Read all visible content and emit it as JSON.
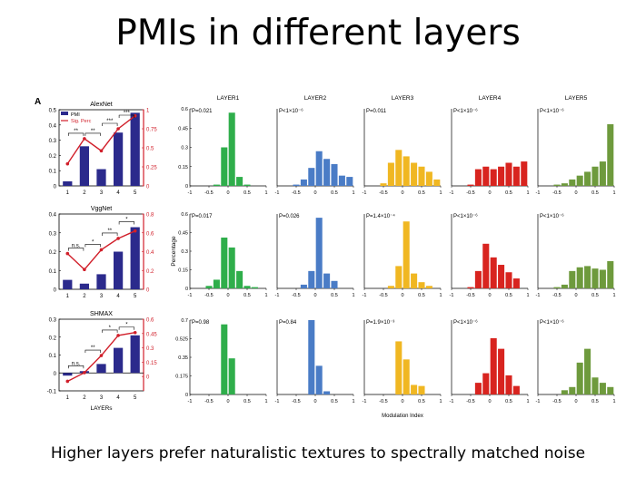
{
  "slide": {
    "title": "PMIs in different layers",
    "caption": "Higher layers prefer naturalistic textures to spectrally matched noise"
  },
  "colors": {
    "bar_blue": "#2b2a8c",
    "line_red": "#d11f2a",
    "layer_colors": [
      "#2fae4b",
      "#4a7cc6",
      "#f0b722",
      "#d8241f",
      "#6e9a3d"
    ]
  },
  "chart_data": [
    {
      "type": "bar+line",
      "panel_label": "A",
      "title": "AlexNet",
      "categories": [
        "1",
        "2",
        "3",
        "4",
        "5"
      ],
      "xticks": [
        "1",
        "2",
        "3",
        "4",
        "5"
      ],
      "ylim_left": [
        0,
        0.5
      ],
      "yticks_left": [
        "0",
        "0.1",
        "0.2",
        "0.3",
        "0.4",
        "0.5"
      ],
      "ylim_right": [
        0,
        1
      ],
      "yticks_right": [
        "0",
        "0.25",
        "0.5",
        "0.75",
        "1"
      ],
      "legend": [
        "PMI",
        "Sig. Perc"
      ],
      "series": [
        {
          "name": "PMI",
          "kind": "bar",
          "values": [
            0.03,
            0.26,
            0.11,
            0.35,
            0.48
          ]
        },
        {
          "name": "Sig. Perc",
          "kind": "line",
          "values": [
            0.29,
            0.62,
            0.46,
            0.75,
            0.92
          ]
        }
      ],
      "significance": [
        {
          "from": "1",
          "to": "2",
          "label": "**"
        },
        {
          "from": "2",
          "to": "3",
          "label": "**"
        },
        {
          "from": "3",
          "to": "4",
          "label": "***"
        },
        {
          "from": "4",
          "to": "5",
          "label": "***"
        }
      ]
    },
    {
      "type": "bar+line",
      "title": "VggNet",
      "categories": [
        "1",
        "2",
        "3",
        "4",
        "5"
      ],
      "xticks": [
        "1",
        "2",
        "3",
        "4",
        "5"
      ],
      "ylim_left": [
        0,
        0.4
      ],
      "yticks_left": [
        "0",
        "0.1",
        "0.2",
        "0.3",
        "0.4"
      ],
      "ylim_right": [
        0,
        0.8
      ],
      "yticks_right": [
        "0",
        "0.2",
        "0.4",
        "0.6",
        "0.8"
      ],
      "series": [
        {
          "name": "PMI",
          "kind": "bar",
          "values": [
            0.05,
            0.03,
            0.08,
            0.2,
            0.33
          ]
        },
        {
          "name": "Sig. Perc",
          "kind": "line",
          "values": [
            0.38,
            0.21,
            0.42,
            0.54,
            0.62
          ]
        }
      ],
      "significance": [
        {
          "from": "1",
          "to": "2",
          "label": "n.s."
        },
        {
          "from": "2",
          "to": "3",
          "label": "*"
        },
        {
          "from": "3",
          "to": "4",
          "label": "**"
        },
        {
          "from": "4",
          "to": "5",
          "label": "*"
        }
      ]
    },
    {
      "type": "bar+line",
      "title": "SHMAX",
      "xlabel": "LAYERs",
      "categories": [
        "1",
        "2",
        "3",
        "4",
        "5"
      ],
      "xticks": [
        "1",
        "2",
        "3",
        "4",
        "5"
      ],
      "ylim_left": [
        -0.1,
        0.3
      ],
      "yticks_left": [
        "-0.1",
        "0",
        "0.1",
        "0.2",
        "0.3"
      ],
      "ylim_right": [
        -0.15,
        0.6
      ],
      "yticks_right": [
        "0",
        "0.15",
        "0.3",
        "0.45",
        "0.6"
      ],
      "series": [
        {
          "name": "PMI",
          "kind": "bar",
          "values": [
            -0.015,
            0.01,
            0.05,
            0.14,
            0.21
          ]
        },
        {
          "name": "Sig. Perc",
          "kind": "line",
          "values": [
            -0.05,
            0.04,
            0.22,
            0.43,
            0.46
          ]
        }
      ],
      "significance": [
        {
          "from": "1",
          "to": "2",
          "label": "n.s."
        },
        {
          "from": "2",
          "to": "3",
          "label": "**"
        },
        {
          "from": "3",
          "to": "4",
          "label": "*"
        },
        {
          "from": "4",
          "to": "5",
          "label": "*"
        }
      ]
    },
    {
      "type": "histogram-grid",
      "columns": [
        "LAYER1",
        "LAYER2",
        "LAYER3",
        "LAYER4",
        "LAYER5"
      ],
      "ylabel": "Percentage",
      "xlabel": "Modulation Index",
      "xlim": [
        -1,
        1
      ],
      "xticks": [
        "-1",
        "-0.5",
        "0",
        "0.5",
        "1"
      ],
      "bin_centers": [
        -0.9,
        -0.7,
        -0.5,
        -0.3,
        -0.1,
        0.1,
        0.3,
        0.5,
        0.7,
        0.9
      ],
      "rows": [
        {
          "ylim": [
            0,
            0.6
          ],
          "yticks": [
            "0",
            "0.15",
            "0.3",
            "0.45",
            "0.6"
          ],
          "cells": [
            {
              "p": "P=0.021",
              "values": [
                0,
                0,
                0,
                0.01,
                0.3,
                0.57,
                0.07,
                0.01,
                0,
                0
              ]
            },
            {
              "p": "P<1×10⁻⁶",
              "values": [
                0,
                0,
                0.01,
                0.05,
                0.14,
                0.27,
                0.21,
                0.17,
                0.08,
                0.07
              ]
            },
            {
              "p": "P=0.011",
              "values": [
                0,
                0,
                0.02,
                0.18,
                0.28,
                0.23,
                0.18,
                0.15,
                0.11,
                0.05
              ]
            },
            {
              "p": "P<1×10⁻⁶",
              "values": [
                0,
                0,
                0.01,
                0.13,
                0.15,
                0.13,
                0.15,
                0.18,
                0.15,
                0.19
              ]
            },
            {
              "p": "P<1×10⁻⁶",
              "values": [
                0,
                0,
                0.01,
                0.02,
                0.05,
                0.08,
                0.11,
                0.15,
                0.19,
                0.48
              ]
            }
          ]
        },
        {
          "ylim": [
            0,
            0.6
          ],
          "yticks": [
            "0",
            "0.15",
            "0.3",
            "0.45",
            "0.6"
          ],
          "cells": [
            {
              "p": "P=0.017",
              "values": [
                0,
                0,
                0.02,
                0.07,
                0.41,
                0.33,
                0.14,
                0.02,
                0.01,
                0
              ]
            },
            {
              "p": "P=0.026",
              "values": [
                0,
                0,
                0,
                0.03,
                0.14,
                0.57,
                0.12,
                0.06,
                0,
                0
              ]
            },
            {
              "p": "P=1.4×10⁻⁴",
              "values": [
                0,
                0,
                0,
                0.02,
                0.18,
                0.54,
                0.12,
                0.05,
                0.02,
                0
              ]
            },
            {
              "p": "P<1×10⁻⁶",
              "values": [
                0,
                0,
                0.01,
                0.14,
                0.36,
                0.25,
                0.19,
                0.13,
                0.08,
                0
              ]
            },
            {
              "p": "P<1×10⁻⁶",
              "values": [
                0,
                0,
                0.01,
                0.03,
                0.14,
                0.17,
                0.18,
                0.16,
                0.15,
                0.22
              ]
            }
          ]
        },
        {
          "ylim": [
            0,
            0.7
          ],
          "yticks": [
            "0",
            "0.175",
            "0.35",
            "0.525",
            "0.7"
          ],
          "cells": [
            {
              "p": "P=0.98",
              "values": [
                0,
                0,
                0,
                0,
                0.66,
                0.34,
                0,
                0,
                0,
                0
              ]
            },
            {
              "p": "P=0.84",
              "values": [
                0,
                0,
                0,
                0,
                0.7,
                0.27,
                0.03,
                0,
                0,
                0
              ]
            },
            {
              "p": "P=1.9×10⁻³",
              "values": [
                0,
                0,
                0,
                0,
                0.5,
                0.33,
                0.09,
                0.08,
                0,
                0
              ]
            },
            {
              "p": "P<1×10⁻⁶",
              "values": [
                0,
                0,
                0,
                0.11,
                0.2,
                0.53,
                0.43,
                0.18,
                0.08,
                0
              ]
            },
            {
              "p": "P<1×10⁻⁶",
              "values": [
                0,
                0,
                0,
                0.04,
                0.07,
                0.3,
                0.43,
                0.16,
                0.11,
                0.07
              ]
            }
          ]
        }
      ]
    }
  ]
}
